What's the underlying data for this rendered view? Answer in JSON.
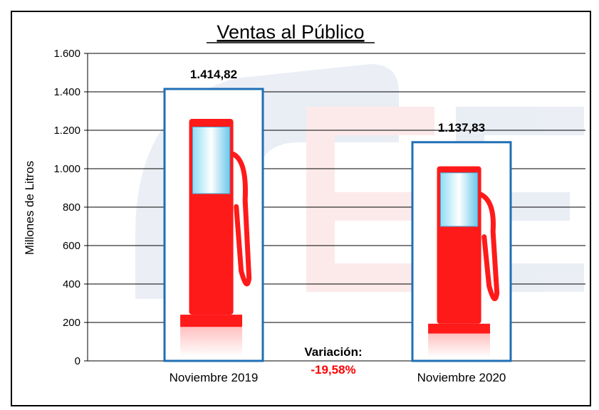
{
  "chart_data": {
    "type": "bar",
    "title": "Ventas al Público",
    "ylabel": "Millones de Litros",
    "xlabel": "",
    "categories": [
      "Noviembre 2019",
      "Noviembre 2020"
    ],
    "values": [
      1414.82,
      1137.83
    ],
    "value_labels": [
      "1.414,82",
      "1.137,83"
    ],
    "ylim": [
      0,
      1600
    ],
    "yticks": [
      0,
      200,
      400,
      600,
      800,
      1000,
      1200,
      1400,
      1600
    ],
    "ytick_labels": [
      "0",
      "200",
      "400",
      "600",
      "800",
      "1.000",
      "1.200",
      "1.400",
      "1.600"
    ],
    "grid": true,
    "bar_style": "fuel-pump pictograph",
    "annotation": {
      "title": "Variación:",
      "value": "-19,58%"
    },
    "colors": {
      "bar_border": "#1f6fb5",
      "pump": "#ff1a1a",
      "pump_window": "#7fd3f0",
      "variation": "#ff0000",
      "grid": "#000000"
    }
  }
}
